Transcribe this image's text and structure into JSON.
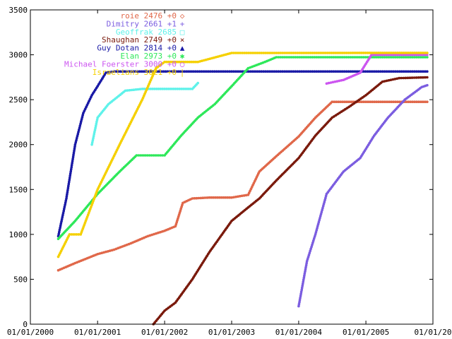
{
  "chart_data": {
    "type": "line",
    "title": "",
    "xlabel": "",
    "ylabel": "",
    "xlim": [
      "2000-01-01",
      "2006-01-01"
    ],
    "ylim": [
      0,
      3500
    ],
    "x_ticks": [
      "01/01/2000",
      "01/01/2001",
      "01/01/2002",
      "01/01/2003",
      "01/01/2004",
      "01/01/2005",
      "01/01/20"
    ],
    "y_ticks": [
      0,
      500,
      1000,
      1500,
      2000,
      2500,
      3000,
      3500
    ],
    "grid": false,
    "legend_position": "top-left",
    "series": [
      {
        "name": "roie 2476 +0",
        "color": "#e0684a",
        "marker": "diamond",
        "marker_glyph": "◇",
        "points": [
          [
            "2000-06-01",
            600
          ],
          [
            "2000-09-01",
            680
          ],
          [
            "2001-01-01",
            780
          ],
          [
            "2001-04-01",
            830
          ],
          [
            "2001-07-01",
            900
          ],
          [
            "2001-10-01",
            980
          ],
          [
            "2002-01-01",
            1040
          ],
          [
            "2002-03-01",
            1090
          ],
          [
            "2002-04-10",
            1350
          ],
          [
            "2002-06-01",
            1400
          ],
          [
            "2002-09-01",
            1410
          ],
          [
            "2003-01-01",
            1410
          ],
          [
            "2003-04-01",
            1440
          ],
          [
            "2003-06-01",
            1700
          ],
          [
            "2003-09-01",
            1870
          ],
          [
            "2004-01-01",
            2090
          ],
          [
            "2004-04-01",
            2300
          ],
          [
            "2004-07-01",
            2476
          ],
          [
            "2005-01-01",
            2476
          ],
          [
            "2005-12-01",
            2476
          ]
        ]
      },
      {
        "name": "Dimitry 2661 +1",
        "color": "#7b5de0",
        "marker": "plus",
        "marker_glyph": "+",
        "points": [
          [
            "2004-01-01",
            200
          ],
          [
            "2004-02-15",
            700
          ],
          [
            "2004-04-01",
            1000
          ],
          [
            "2004-06-01",
            1450
          ],
          [
            "2004-09-01",
            1700
          ],
          [
            "2004-12-01",
            1850
          ],
          [
            "2005-02-15",
            2100
          ],
          [
            "2005-05-01",
            2300
          ],
          [
            "2005-08-01",
            2500
          ],
          [
            "2005-11-01",
            2640
          ],
          [
            "2005-12-01",
            2661
          ]
        ]
      },
      {
        "name": "Geoffrak 2685",
        "color": "#5ff2ea",
        "marker": "square",
        "marker_glyph": "□",
        "points": [
          [
            "2000-12-01",
            2000
          ],
          [
            "2001-01-01",
            2300
          ],
          [
            "2001-03-01",
            2450
          ],
          [
            "2001-06-01",
            2600
          ],
          [
            "2001-09-01",
            2620
          ],
          [
            "2002-01-01",
            2620
          ],
          [
            "2002-06-01",
            2620
          ],
          [
            "2002-07-01",
            2685
          ]
        ]
      },
      {
        "name": "Shaughan 2749 +0",
        "color": "#7a1a0c",
        "marker": "cross",
        "marker_glyph": "×",
        "points": [
          [
            "2001-11-01",
            0
          ],
          [
            "2002-01-01",
            150
          ],
          [
            "2002-03-01",
            240
          ],
          [
            "2002-06-01",
            500
          ],
          [
            "2002-09-01",
            800
          ],
          [
            "2003-01-01",
            1150
          ],
          [
            "2003-04-01",
            1300
          ],
          [
            "2003-06-01",
            1400
          ],
          [
            "2003-09-01",
            1600
          ],
          [
            "2004-01-01",
            1850
          ],
          [
            "2004-04-01",
            2100
          ],
          [
            "2004-07-01",
            2300
          ],
          [
            "2004-10-01",
            2420
          ],
          [
            "2005-01-01",
            2550
          ],
          [
            "2005-04-01",
            2700
          ],
          [
            "2005-07-01",
            2740
          ],
          [
            "2005-12-01",
            2749
          ]
        ]
      },
      {
        "name": "Guy Dotan 2814 +0",
        "color": "#1a1aa6",
        "marker": "triangle",
        "marker_glyph": "▲",
        "points": [
          [
            "2000-06-01",
            980
          ],
          [
            "2000-07-15",
            1400
          ],
          [
            "2000-09-01",
            2000
          ],
          [
            "2000-10-15",
            2350
          ],
          [
            "2000-12-01",
            2550
          ],
          [
            "2001-01-01",
            2650
          ],
          [
            "2001-02-15",
            2800
          ],
          [
            "2001-04-01",
            2814
          ],
          [
            "2003-01-01",
            2814
          ],
          [
            "2005-12-01",
            2814
          ]
        ]
      },
      {
        "name": "Elan 2973 +0",
        "color": "#2ee85a",
        "marker": "star",
        "marker_glyph": "✱",
        "points": [
          [
            "2000-06-01",
            950
          ],
          [
            "2000-09-01",
            1150
          ],
          [
            "2001-01-01",
            1450
          ],
          [
            "2001-05-01",
            1700
          ],
          [
            "2001-08-01",
            1880
          ],
          [
            "2002-01-01",
            1880
          ],
          [
            "2002-04-01",
            2100
          ],
          [
            "2002-07-01",
            2300
          ],
          [
            "2002-10-01",
            2450
          ],
          [
            "2003-01-01",
            2650
          ],
          [
            "2003-04-01",
            2850
          ],
          [
            "2003-07-01",
            2920
          ],
          [
            "2003-09-01",
            2973
          ],
          [
            "2005-12-01",
            2973
          ]
        ]
      },
      {
        "name": "Michael Foerster 3000 +0",
        "color": "#cc55f0",
        "marker": "circle",
        "marker_glyph": "○",
        "points": [
          [
            "2004-06-01",
            2680
          ],
          [
            "2004-09-01",
            2720
          ],
          [
            "2004-12-01",
            2800
          ],
          [
            "2005-02-01",
            3000
          ],
          [
            "2005-12-01",
            3000
          ]
        ]
      },
      {
        "name": "Israelians 3021 +0",
        "color": "#f5d000",
        "marker": "vbar",
        "marker_glyph": "|",
        "points": [
          [
            "2000-06-01",
            750
          ],
          [
            "2000-08-01",
            1000
          ],
          [
            "2000-10-01",
            1000
          ],
          [
            "2001-01-01",
            1500
          ],
          [
            "2001-05-01",
            2000
          ],
          [
            "2001-09-01",
            2500
          ],
          [
            "2001-11-15",
            2850
          ],
          [
            "2002-01-01",
            2920
          ],
          [
            "2002-07-01",
            2920
          ],
          [
            "2003-01-01",
            3020
          ],
          [
            "2005-12-01",
            3021
          ]
        ]
      }
    ]
  }
}
